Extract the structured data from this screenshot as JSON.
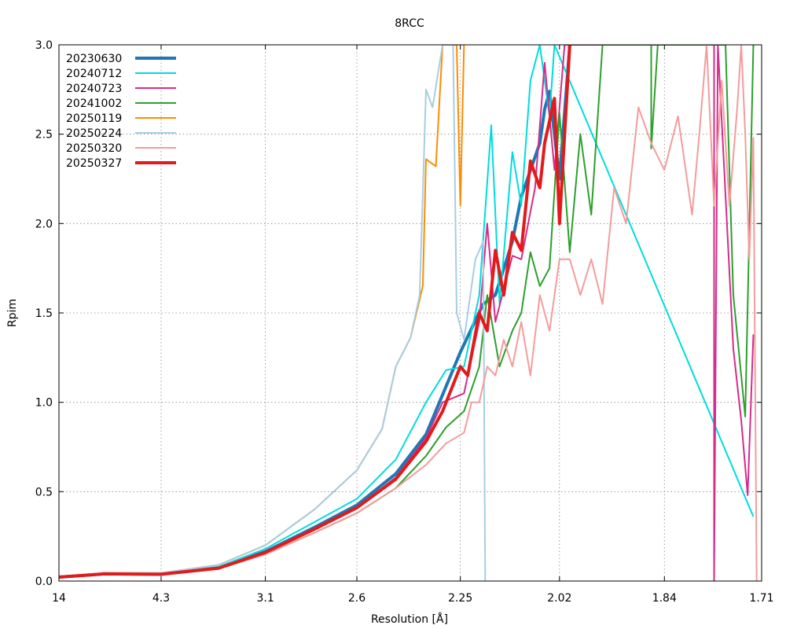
{
  "chart_data": {
    "type": "line",
    "title": "8RCC",
    "xlabel": "Resolution [Å]",
    "ylabel": "Rpim",
    "x_scale": "inverse-square resolution",
    "xlim": [
      14.0,
      1.71
    ],
    "ylim": [
      0.0,
      3.0
    ],
    "x_tick_labels": [
      "14",
      "4.3",
      "3.1",
      "2.6",
      "2.25",
      "2.02",
      "1.84",
      "1.71"
    ],
    "y_tick_labels": [
      "0.0",
      "0.5",
      "1.0",
      "1.5",
      "2.0",
      "2.5",
      "3.0"
    ],
    "grid": true,
    "legend_position": "top-left",
    "series": [
      {
        "name": "20230630",
        "color": "#1f77b4",
        "thick": true,
        "points": [
          [
            14.0,
            0.022
          ],
          [
            6.13,
            0.04
          ],
          [
            4.3,
            0.038
          ],
          [
            3.5,
            0.075
          ],
          [
            3.1,
            0.165
          ],
          [
            2.8,
            0.3
          ],
          [
            2.6,
            0.425
          ],
          [
            2.45,
            0.6
          ],
          [
            2.35,
            0.82
          ],
          [
            2.25,
            1.28
          ],
          [
            2.19,
            1.55
          ],
          [
            2.16,
            1.6
          ],
          [
            2.12,
            1.9
          ],
          [
            2.1,
            2.15
          ],
          [
            2.06,
            2.45
          ],
          [
            2.05,
            2.64
          ],
          [
            2.04,
            2.74
          ],
          [
            2.02,
            2.25
          ],
          [
            2.0,
            3.0
          ]
        ]
      },
      {
        "name": "20240712",
        "color": "#00dcdc",
        "thick": false,
        "points": [
          [
            14.0,
            0.022
          ],
          [
            6.13,
            0.042
          ],
          [
            4.3,
            0.04
          ],
          [
            3.5,
            0.08
          ],
          [
            3.1,
            0.18
          ],
          [
            2.8,
            0.33
          ],
          [
            2.6,
            0.46
          ],
          [
            2.45,
            0.68
          ],
          [
            2.35,
            1.0
          ],
          [
            2.29,
            1.18
          ],
          [
            2.24,
            1.2
          ],
          [
            2.2,
            1.6
          ],
          [
            2.17,
            2.55
          ],
          [
            2.15,
            1.55
          ],
          [
            2.12,
            2.4
          ],
          [
            2.1,
            2.1
          ],
          [
            2.08,
            2.8
          ],
          [
            2.06,
            3.0
          ],
          [
            2.04,
            2.6
          ],
          [
            2.03,
            3.0
          ],
          [
            1.72,
            0.36
          ]
        ]
      },
      {
        "name": "20240723",
        "color": "#d62c8b",
        "thick": false,
        "points": [
          [
            14.0,
            0.022
          ],
          [
            6.13,
            0.04
          ],
          [
            4.3,
            0.038
          ],
          [
            3.5,
            0.072
          ],
          [
            3.1,
            0.16
          ],
          [
            2.8,
            0.29
          ],
          [
            2.6,
            0.41
          ],
          [
            2.45,
            0.58
          ],
          [
            2.35,
            0.8
          ],
          [
            2.3,
            1.0
          ],
          [
            2.24,
            1.05
          ],
          [
            2.2,
            1.45
          ],
          [
            2.18,
            2.0
          ],
          [
            2.16,
            1.45
          ],
          [
            2.12,
            1.82
          ],
          [
            2.1,
            1.8
          ],
          [
            2.07,
            2.2
          ],
          [
            2.05,
            2.9
          ],
          [
            2.03,
            2.3
          ],
          [
            2.01,
            3.0
          ],
          [
            1.77,
            3.0
          ],
          [
            1.77,
            0.0
          ],
          [
            1.765,
            3.0
          ],
          [
            1.745,
            1.3
          ],
          [
            1.735,
            0.9
          ],
          [
            1.727,
            0.48
          ],
          [
            1.72,
            1.38
          ]
        ]
      },
      {
        "name": "20241002",
        "color": "#2ca02c",
        "thick": false,
        "points": [
          [
            14.0,
            0.022
          ],
          [
            6.13,
            0.038
          ],
          [
            4.3,
            0.036
          ],
          [
            3.5,
            0.068
          ],
          [
            3.1,
            0.15
          ],
          [
            2.8,
            0.27
          ],
          [
            2.6,
            0.38
          ],
          [
            2.45,
            0.52
          ],
          [
            2.35,
            0.7
          ],
          [
            2.29,
            0.86
          ],
          [
            2.24,
            0.95
          ],
          [
            2.2,
            1.2
          ],
          [
            2.18,
            1.6
          ],
          [
            2.15,
            1.2
          ],
          [
            2.12,
            1.4
          ],
          [
            2.1,
            1.5
          ],
          [
            2.08,
            1.84
          ],
          [
            2.06,
            1.65
          ],
          [
            2.04,
            1.75
          ],
          [
            2.02,
            2.62
          ],
          [
            2.0,
            1.84
          ],
          [
            1.98,
            2.5
          ],
          [
            1.96,
            2.05
          ],
          [
            1.94,
            3.0
          ],
          [
            1.86,
            3.0
          ],
          [
            1.86,
            2.42
          ],
          [
            1.85,
            3.0
          ],
          [
            1.755,
            3.0
          ],
          [
            1.745,
            1.6
          ],
          [
            1.73,
            0.92
          ],
          [
            1.72,
            3.0
          ]
        ]
      },
      {
        "name": "20250119",
        "color": "#ff8c00",
        "thick": false,
        "points": [
          [
            14.0,
            0.025
          ],
          [
            6.13,
            0.045
          ],
          [
            4.3,
            0.045
          ],
          [
            3.5,
            0.09
          ],
          [
            3.1,
            0.2
          ],
          [
            2.8,
            0.4
          ],
          [
            2.6,
            0.62
          ],
          [
            2.5,
            0.85
          ],
          [
            2.45,
            1.2
          ],
          [
            2.4,
            1.36
          ],
          [
            2.36,
            1.65
          ],
          [
            2.35,
            2.36
          ],
          [
            2.32,
            2.32
          ],
          [
            2.3,
            3.0
          ],
          [
            2.26,
            3.0
          ],
          [
            2.25,
            2.1
          ],
          [
            2.24,
            3.0
          ]
        ]
      },
      {
        "name": "20250224",
        "color": "#a6cee3",
        "thick": false,
        "points": [
          [
            14.0,
            0.025
          ],
          [
            6.13,
            0.045
          ],
          [
            4.3,
            0.045
          ],
          [
            3.5,
            0.09
          ],
          [
            3.1,
            0.2
          ],
          [
            2.8,
            0.4
          ],
          [
            2.6,
            0.62
          ],
          [
            2.5,
            0.85
          ],
          [
            2.45,
            1.2
          ],
          [
            2.4,
            1.36
          ],
          [
            2.37,
            1.6
          ],
          [
            2.35,
            2.75
          ],
          [
            2.33,
            2.65
          ],
          [
            2.3,
            3.0
          ],
          [
            2.27,
            3.0
          ],
          [
            2.26,
            1.5
          ],
          [
            2.24,
            1.35
          ],
          [
            2.21,
            1.8
          ],
          [
            2.19,
            1.9
          ],
          [
            2.185,
            0.0
          ]
        ]
      },
      {
        "name": "20250320",
        "color": "#f49c9c",
        "thick": false,
        "points": [
          [
            14.0,
            0.022
          ],
          [
            6.13,
            0.038
          ],
          [
            4.3,
            0.036
          ],
          [
            3.5,
            0.068
          ],
          [
            3.1,
            0.15
          ],
          [
            2.8,
            0.27
          ],
          [
            2.6,
            0.38
          ],
          [
            2.45,
            0.52
          ],
          [
            2.35,
            0.65
          ],
          [
            2.29,
            0.77
          ],
          [
            2.24,
            0.83
          ],
          [
            2.22,
            1.0
          ],
          [
            2.2,
            1.0
          ],
          [
            2.18,
            1.2
          ],
          [
            2.16,
            1.15
          ],
          [
            2.14,
            1.35
          ],
          [
            2.12,
            1.2
          ],
          [
            2.1,
            1.45
          ],
          [
            2.08,
            1.15
          ],
          [
            2.06,
            1.6
          ],
          [
            2.04,
            1.4
          ],
          [
            2.02,
            1.8
          ],
          [
            2.0,
            1.8
          ],
          [
            1.98,
            1.6
          ],
          [
            1.96,
            1.8
          ],
          [
            1.94,
            1.55
          ],
          [
            1.92,
            2.2
          ],
          [
            1.9,
            2.0
          ],
          [
            1.88,
            2.65
          ],
          [
            1.86,
            2.45
          ],
          [
            1.84,
            2.3
          ],
          [
            1.82,
            2.6
          ],
          [
            1.8,
            2.05
          ],
          [
            1.79,
            2.5
          ],
          [
            1.78,
            3.0
          ],
          [
            1.77,
            2.1
          ],
          [
            1.76,
            2.8
          ],
          [
            1.75,
            2.1
          ],
          [
            1.74,
            2.65
          ],
          [
            1.735,
            3.0
          ],
          [
            1.73,
            2.5
          ],
          [
            1.725,
            1.8
          ],
          [
            1.72,
            2.48
          ],
          [
            1.716,
            0.0
          ]
        ]
      },
      {
        "name": "20250327",
        "color": "#e31a1c",
        "thick": true,
        "points": [
          [
            14.0,
            0.022
          ],
          [
            6.13,
            0.04
          ],
          [
            4.3,
            0.038
          ],
          [
            3.5,
            0.072
          ],
          [
            3.1,
            0.16
          ],
          [
            2.8,
            0.29
          ],
          [
            2.6,
            0.41
          ],
          [
            2.45,
            0.57
          ],
          [
            2.35,
            0.78
          ],
          [
            2.3,
            0.95
          ],
          [
            2.25,
            1.2
          ],
          [
            2.23,
            1.15
          ],
          [
            2.2,
            1.5
          ],
          [
            2.18,
            1.4
          ],
          [
            2.16,
            1.85
          ],
          [
            2.14,
            1.6
          ],
          [
            2.12,
            1.95
          ],
          [
            2.1,
            1.85
          ],
          [
            2.08,
            2.35
          ],
          [
            2.06,
            2.2
          ],
          [
            2.05,
            2.45
          ],
          [
            2.03,
            2.7
          ],
          [
            2.02,
            2.0
          ],
          [
            2.0,
            3.0
          ]
        ]
      }
    ]
  }
}
